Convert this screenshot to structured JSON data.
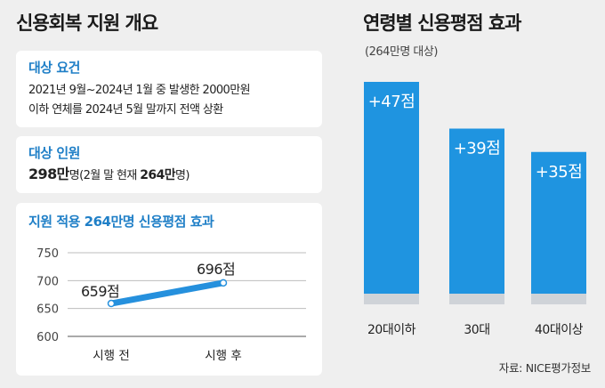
{
  "left_title": "신용회복 지원 개요",
  "eligibility": {
    "title": "대상 요건",
    "line1": "2021년 9월~2024년 1월 중 발생한 2000만원",
    "line2": "이하 연체를 2024년 5월 말까지 전액 상환"
  },
  "target": {
    "title": "대상 인원",
    "value": "298만",
    "unit": "명",
    "note_prefix": "(2월 말 현재 ",
    "note_value": "264만",
    "note_suffix": "명)"
  },
  "colors": {
    "accent": "#1f7fc7",
    "bar": "#1f94e0",
    "bar_base": "#cfd3d8",
    "line": "#2590dd"
  },
  "chart_data": [
    {
      "type": "line",
      "title": "지원 적용 264만명 신용평점 효과",
      "categories": [
        "시행 전",
        "시행 후"
      ],
      "values": [
        659,
        696
      ],
      "data_labels": [
        "659점",
        "696점"
      ],
      "ylim": [
        600,
        750
      ],
      "yticks": [
        "600",
        "650",
        "700",
        "750"
      ],
      "grid": true
    },
    {
      "type": "bar",
      "title": "연령별 신용평점 효과",
      "subtitle": "(264만명 대상)",
      "categories": [
        "20대이하",
        "30대",
        "40대이상"
      ],
      "values": [
        47,
        39,
        35
      ],
      "data_labels": [
        "+47점",
        "+39점",
        "+35점"
      ]
    }
  ],
  "source": "자료: NICE평가정보"
}
